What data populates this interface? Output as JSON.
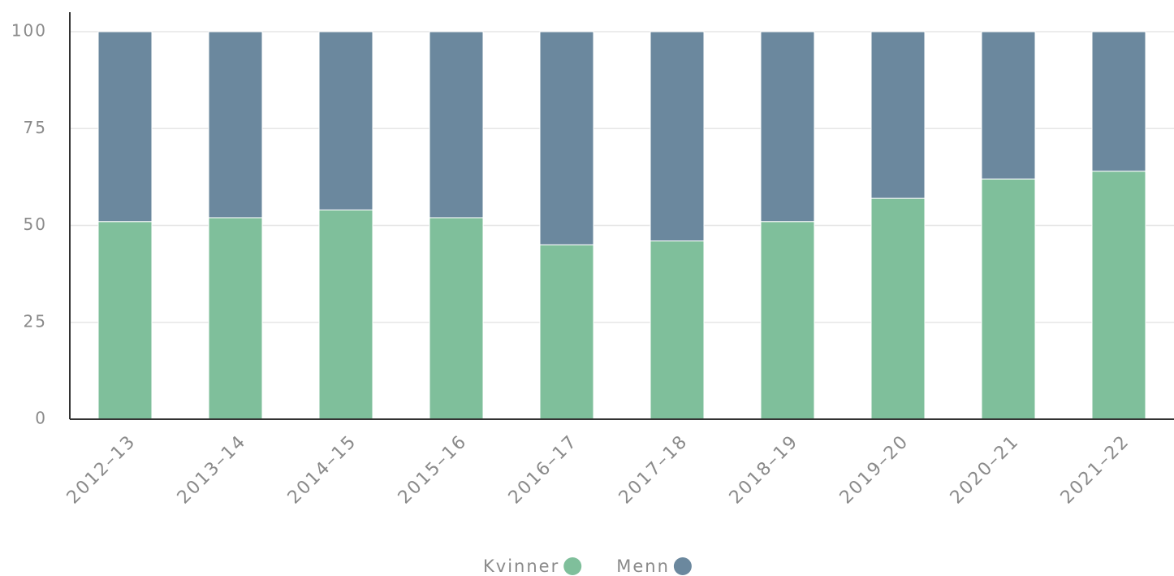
{
  "chart_data": {
    "type": "stacked_bar",
    "categories": [
      "2012–13",
      "2013–14",
      "2014–15",
      "2015–16",
      "2016–17",
      "2017–18",
      "2018–19",
      "2019–20",
      "2020–21",
      "2021–22"
    ],
    "series": [
      {
        "name": "Kvinner",
        "color": "#7fbf9b",
        "values": [
          51,
          52,
          54,
          52,
          45,
          46,
          51,
          57,
          62,
          64
        ]
      },
      {
        "name": "Menn",
        "color": "#6b889e",
        "values": [
          49,
          48,
          46,
          48,
          55,
          54,
          49,
          43,
          38,
          36
        ]
      }
    ],
    "ylim": [
      0,
      100
    ],
    "yticks": [
      0,
      25,
      50,
      75,
      100
    ],
    "grid": true
  }
}
